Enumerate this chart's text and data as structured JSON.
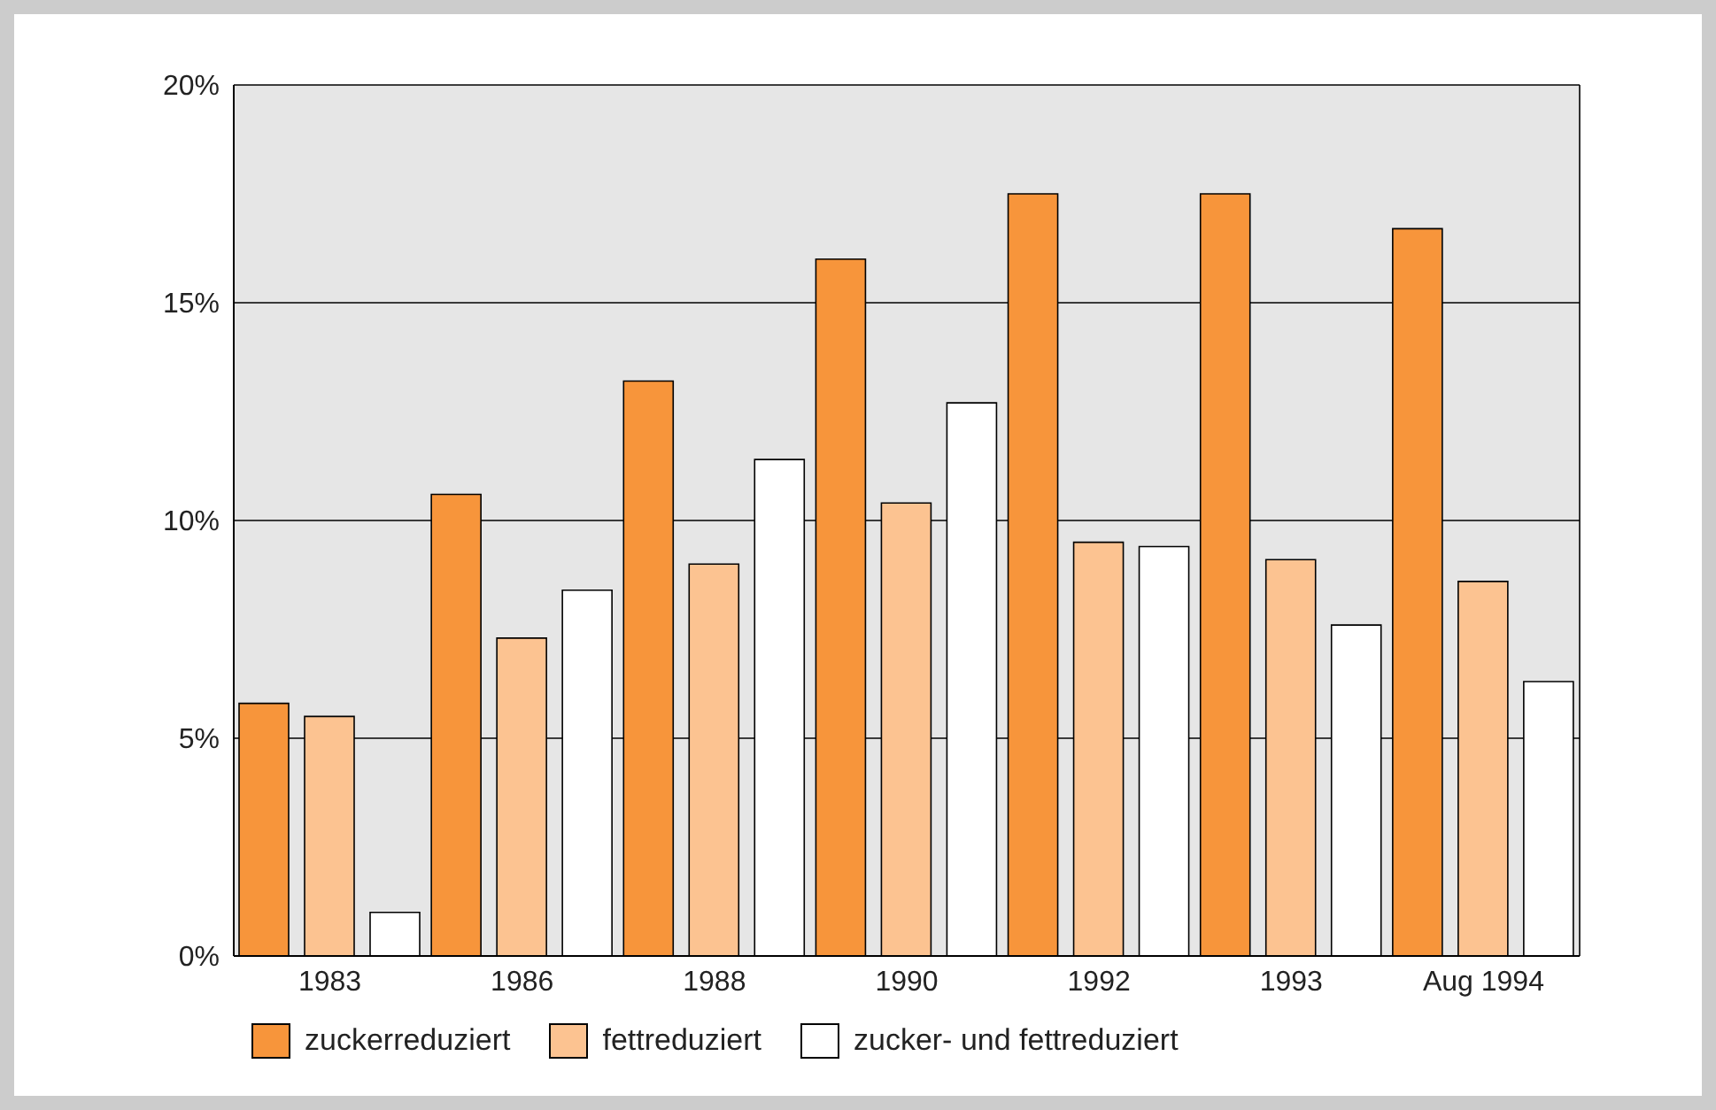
{
  "chart_data": {
    "type": "bar",
    "categories": [
      "1983",
      "1986",
      "1988",
      "1990",
      "1992",
      "1993",
      "Aug 1994"
    ],
    "series": [
      {
        "name": "zuckerreduziert",
        "color": "#f7953b",
        "values": [
          5.8,
          10.6,
          13.2,
          16.0,
          17.5,
          17.5,
          16.7
        ]
      },
      {
        "name": "fettreduziert",
        "color": "#fcc391",
        "values": [
          5.5,
          7.3,
          9.0,
          10.4,
          9.5,
          9.1,
          8.6
        ]
      },
      {
        "name": "zucker- und fettreduziert",
        "color": "#ffffff",
        "values": [
          1.0,
          8.4,
          11.4,
          12.7,
          9.4,
          7.6,
          6.3
        ]
      }
    ],
    "ylim": [
      0,
      20
    ],
    "yticks": [
      {
        "value": 0,
        "label": "0%"
      },
      {
        "value": 5,
        "label": "5%"
      },
      {
        "value": 10,
        "label": "10%"
      },
      {
        "value": 15,
        "label": "15%"
      },
      {
        "value": 20,
        "label": "20%"
      }
    ],
    "grid": "y",
    "legend": "bottom left"
  }
}
